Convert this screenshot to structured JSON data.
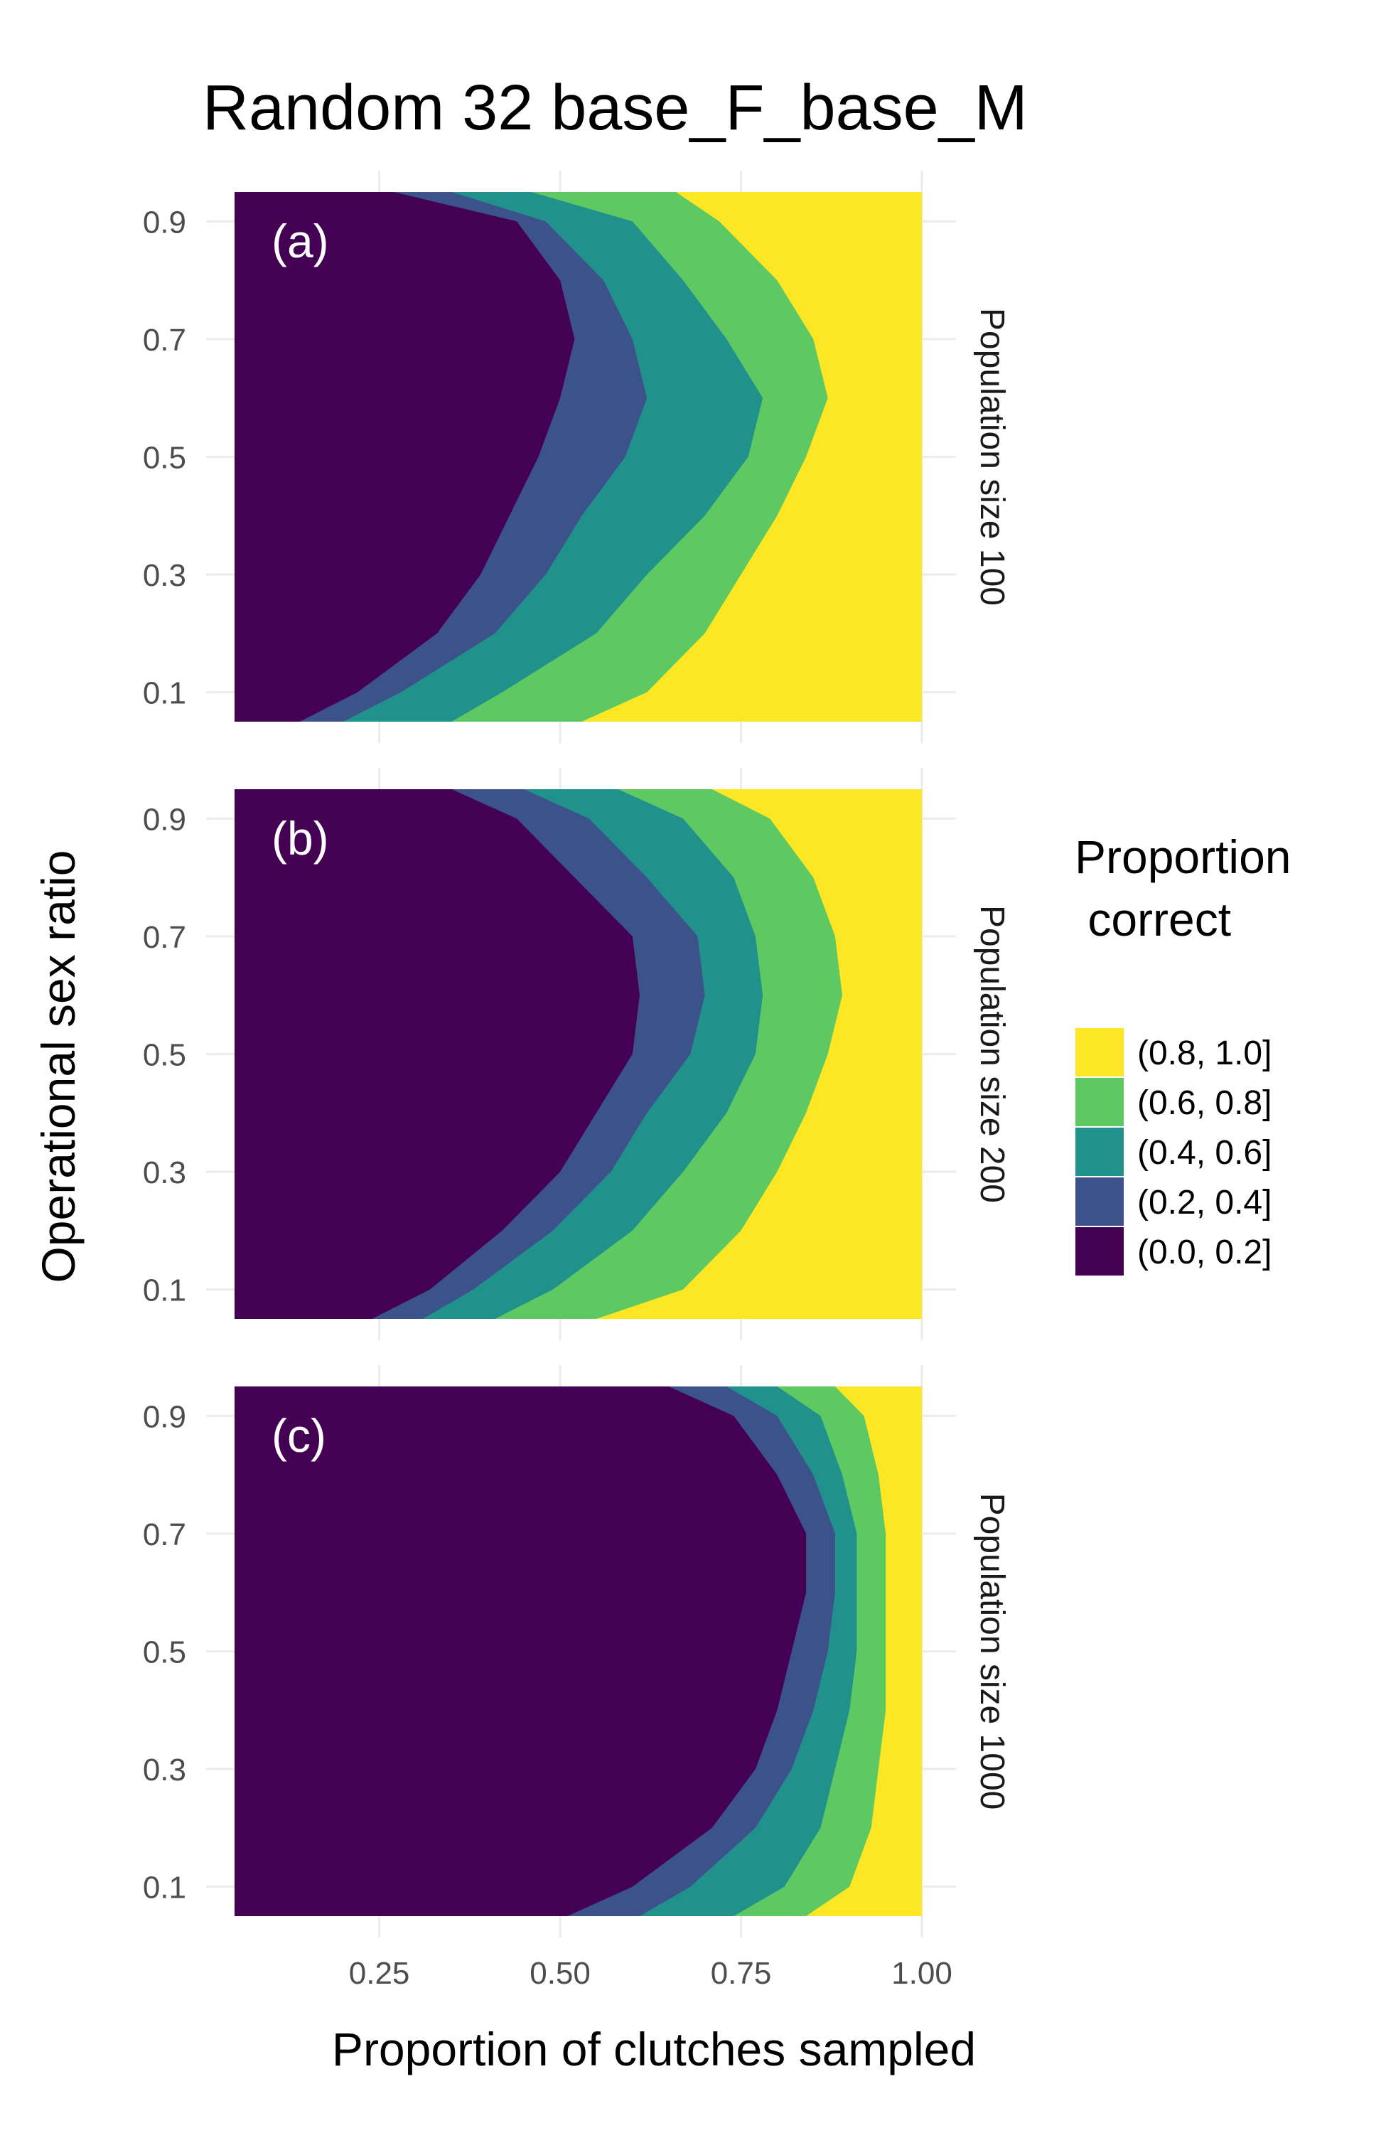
{
  "chart_data": {
    "type": "contour",
    "title": "Random 32 base_F_base_M",
    "xlabel": "Proportion of clutches sampled",
    "ylabel": "Operational sex ratio",
    "xlim": [
      0.05,
      1.0
    ],
    "ylim": [
      0.05,
      0.95
    ],
    "x_ticks": [
      "0.25",
      "0.50",
      "0.75",
      "1.00"
    ],
    "x_tick_values": [
      0.25,
      0.5,
      0.75,
      1.0
    ],
    "y_ticks": [
      "0.1",
      "0.3",
      "0.5",
      "0.7",
      "0.9"
    ],
    "y_tick_values": [
      0.1,
      0.3,
      0.5,
      0.7,
      0.9
    ],
    "grid": true,
    "legend": {
      "title_lines": [
        "Proportion",
        " correct"
      ],
      "placement": "right",
      "items": [
        {
          "label": "(0.8, 1.0]",
          "color": "#fde725"
        },
        {
          "label": "(0.6, 0.8]",
          "color": "#5ec962"
        },
        {
          "label": "(0.4, 0.6]",
          "color": "#21918c"
        },
        {
          "label": "(0.2, 0.4]",
          "color": "#3b528b"
        },
        {
          "label": "(0.0, 0.2]",
          "color": "#440154"
        }
      ]
    },
    "osr_levels": [
      0.05,
      0.1,
      0.2,
      0.3,
      0.4,
      0.5,
      0.6,
      0.7,
      0.8,
      0.9,
      0.95
    ],
    "panels": [
      {
        "tag": "(a)",
        "strip_label": "Population size 100",
        "boundaries": [
          {
            "upper_bin": "(0.2, 0.4]",
            "x_at_osr": [
              0.14,
              0.22,
              0.33,
              0.39,
              0.43,
              0.47,
              0.5,
              0.52,
              0.5,
              0.44,
              0.27
            ]
          },
          {
            "upper_bin": "(0.4, 0.6]",
            "x_at_osr": [
              0.2,
              0.28,
              0.41,
              0.48,
              0.53,
              0.59,
              0.62,
              0.6,
              0.56,
              0.48,
              0.35
            ]
          },
          {
            "upper_bin": "(0.6, 0.8]",
            "x_at_osr": [
              0.35,
              0.42,
              0.55,
              0.62,
              0.7,
              0.76,
              0.78,
              0.73,
              0.67,
              0.6,
              0.46
            ]
          },
          {
            "upper_bin": "(0.8, 1.0]",
            "x_at_osr": [
              0.53,
              0.62,
              0.7,
              0.75,
              0.8,
              0.84,
              0.87,
              0.85,
              0.8,
              0.72,
              0.66
            ]
          }
        ]
      },
      {
        "tag": "(b)",
        "strip_label": "Population size 200",
        "boundaries": [
          {
            "upper_bin": "(0.2, 0.4]",
            "x_at_osr": [
              0.24,
              0.32,
              0.42,
              0.5,
              0.55,
              0.6,
              0.61,
              0.6,
              0.52,
              0.44,
              0.35
            ]
          },
          {
            "upper_bin": "(0.4, 0.6]",
            "x_at_osr": [
              0.31,
              0.38,
              0.49,
              0.57,
              0.62,
              0.68,
              0.7,
              0.69,
              0.62,
              0.54,
              0.45
            ]
          },
          {
            "upper_bin": "(0.6, 0.8]",
            "x_at_osr": [
              0.41,
              0.49,
              0.6,
              0.67,
              0.73,
              0.77,
              0.78,
              0.77,
              0.74,
              0.67,
              0.58
            ]
          },
          {
            "upper_bin": "(0.8, 1.0]",
            "x_at_osr": [
              0.55,
              0.67,
              0.75,
              0.8,
              0.84,
              0.87,
              0.89,
              0.88,
              0.85,
              0.79,
              0.71
            ]
          }
        ]
      },
      {
        "tag": "(c)",
        "strip_label": "Population size 1000",
        "boundaries": [
          {
            "upper_bin": "(0.2, 0.4]",
            "x_at_osr": [
              0.51,
              0.6,
              0.71,
              0.77,
              0.8,
              0.82,
              0.84,
              0.84,
              0.8,
              0.74,
              0.65
            ]
          },
          {
            "upper_bin": "(0.4, 0.6]",
            "x_at_osr": [
              0.61,
              0.68,
              0.77,
              0.82,
              0.85,
              0.87,
              0.88,
              0.88,
              0.85,
              0.8,
              0.73
            ]
          },
          {
            "upper_bin": "(0.6, 0.8]",
            "x_at_osr": [
              0.74,
              0.81,
              0.86,
              0.88,
              0.9,
              0.91,
              0.91,
              0.91,
              0.89,
              0.86,
              0.8
            ]
          },
          {
            "upper_bin": "(0.8, 1.0]",
            "x_at_osr": [
              0.84,
              0.9,
              0.93,
              0.94,
              0.95,
              0.95,
              0.95,
              0.95,
              0.94,
              0.92,
              0.88
            ]
          }
        ]
      }
    ]
  }
}
